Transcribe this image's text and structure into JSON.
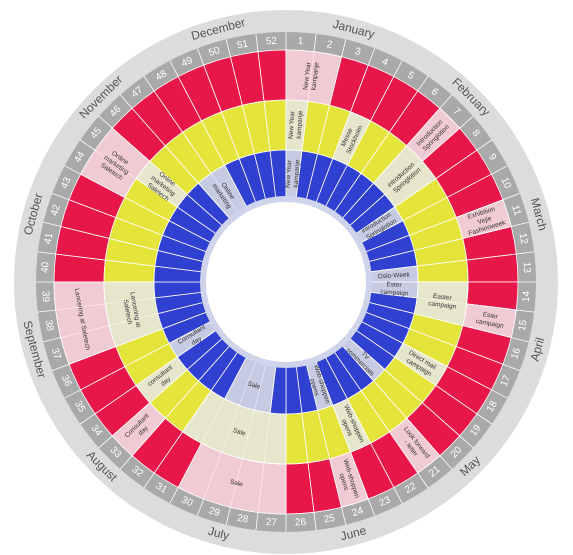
{
  "months": [
    "January",
    "February",
    "March",
    "April",
    "May",
    "June",
    "July",
    "August",
    "September",
    "October",
    "November",
    "December"
  ],
  "weeks": [
    1,
    2,
    3,
    4,
    5,
    6,
    7,
    8,
    9,
    10,
    11,
    12,
    13,
    14,
    15,
    16,
    17,
    18,
    19,
    20,
    21,
    22,
    23,
    24,
    25,
    26,
    27,
    28,
    29,
    30,
    31,
    32,
    33,
    34,
    35,
    36,
    37,
    38,
    39,
    40,
    41,
    42,
    43,
    44,
    45,
    46,
    47,
    48,
    49,
    50,
    51,
    52
  ],
  "rings": [
    {
      "color": "#e8174a",
      "event_color": "#f1cbd3",
      "events": [
        {
          "label": "New Year kampanje",
          "start": 1,
          "end": 2
        },
        {
          "label": "Introduction Springlotion",
          "start": 7,
          "end": 7
        },
        {
          "label": "Exhibition Vejle Fashionweek",
          "start": 11,
          "end": 11
        },
        {
          "label": "Ester campaign",
          "start": 15,
          "end": 15
        },
        {
          "label": "Look forward - letter",
          "start": 21,
          "end": 21
        },
        {
          "label": "Web-shoppen opens",
          "start": 24,
          "end": 24
        },
        {
          "label": "Sale",
          "start": 27,
          "end": 30
        },
        {
          "label": "Consultant day",
          "start": 33,
          "end": 33
        },
        {
          "label": "Lancering at Saletech",
          "start": 37,
          "end": 39
        },
        {
          "label": "Online marketing Saletech",
          "start": 44,
          "end": 45
        }
      ]
    },
    {
      "color": "#e4e43a",
      "event_color": "#e6e6cc",
      "events": [
        {
          "label": "New Year kampanje",
          "start": 1,
          "end": 1
        },
        {
          "label": "Messe Stockholm",
          "start": 4,
          "end": 4
        },
        {
          "label": "introduction Springlotion",
          "start": 7,
          "end": 8
        },
        {
          "label": "Easter campaign",
          "start": 14,
          "end": 15
        },
        {
          "label": "Direct mail campaign",
          "start": 18,
          "end": 18
        },
        {
          "label": "Web-shoppen opens",
          "start": 23,
          "end": 23
        },
        {
          "label": "Sale",
          "start": 27,
          "end": 31
        },
        {
          "label": "consultant day",
          "start": 34,
          "end": 34
        },
        {
          "label": "Lancering at Saletech",
          "start": 37,
          "end": 39
        },
        {
          "label": "Online marketing Saletech",
          "start": 45,
          "end": 45
        }
      ]
    },
    {
      "color": "#3040d0",
      "event_color": "#c6cbe2",
      "events": [
        {
          "label": "New Year kampanje",
          "start": 1,
          "end": 1
        },
        {
          "label": "introduction Springlotion",
          "start": 9,
          "end": 9
        },
        {
          "label": "Oslo-Week",
          "start": 13,
          "end": 13
        },
        {
          "label": "Ester campaign",
          "start": 14,
          "end": 14
        },
        {
          "label": "TV commercials",
          "start": 20,
          "end": 20
        },
        {
          "label": "Web-shoppen opens",
          "start": 24,
          "end": 24
        },
        {
          "label": "Sale",
          "start": 28,
          "end": 30
        },
        {
          "label": "Consultant day",
          "start": 35,
          "end": 35
        },
        {
          "label": "Online marketing",
          "start": 47,
          "end": 48
        }
      ]
    }
  ]
}
